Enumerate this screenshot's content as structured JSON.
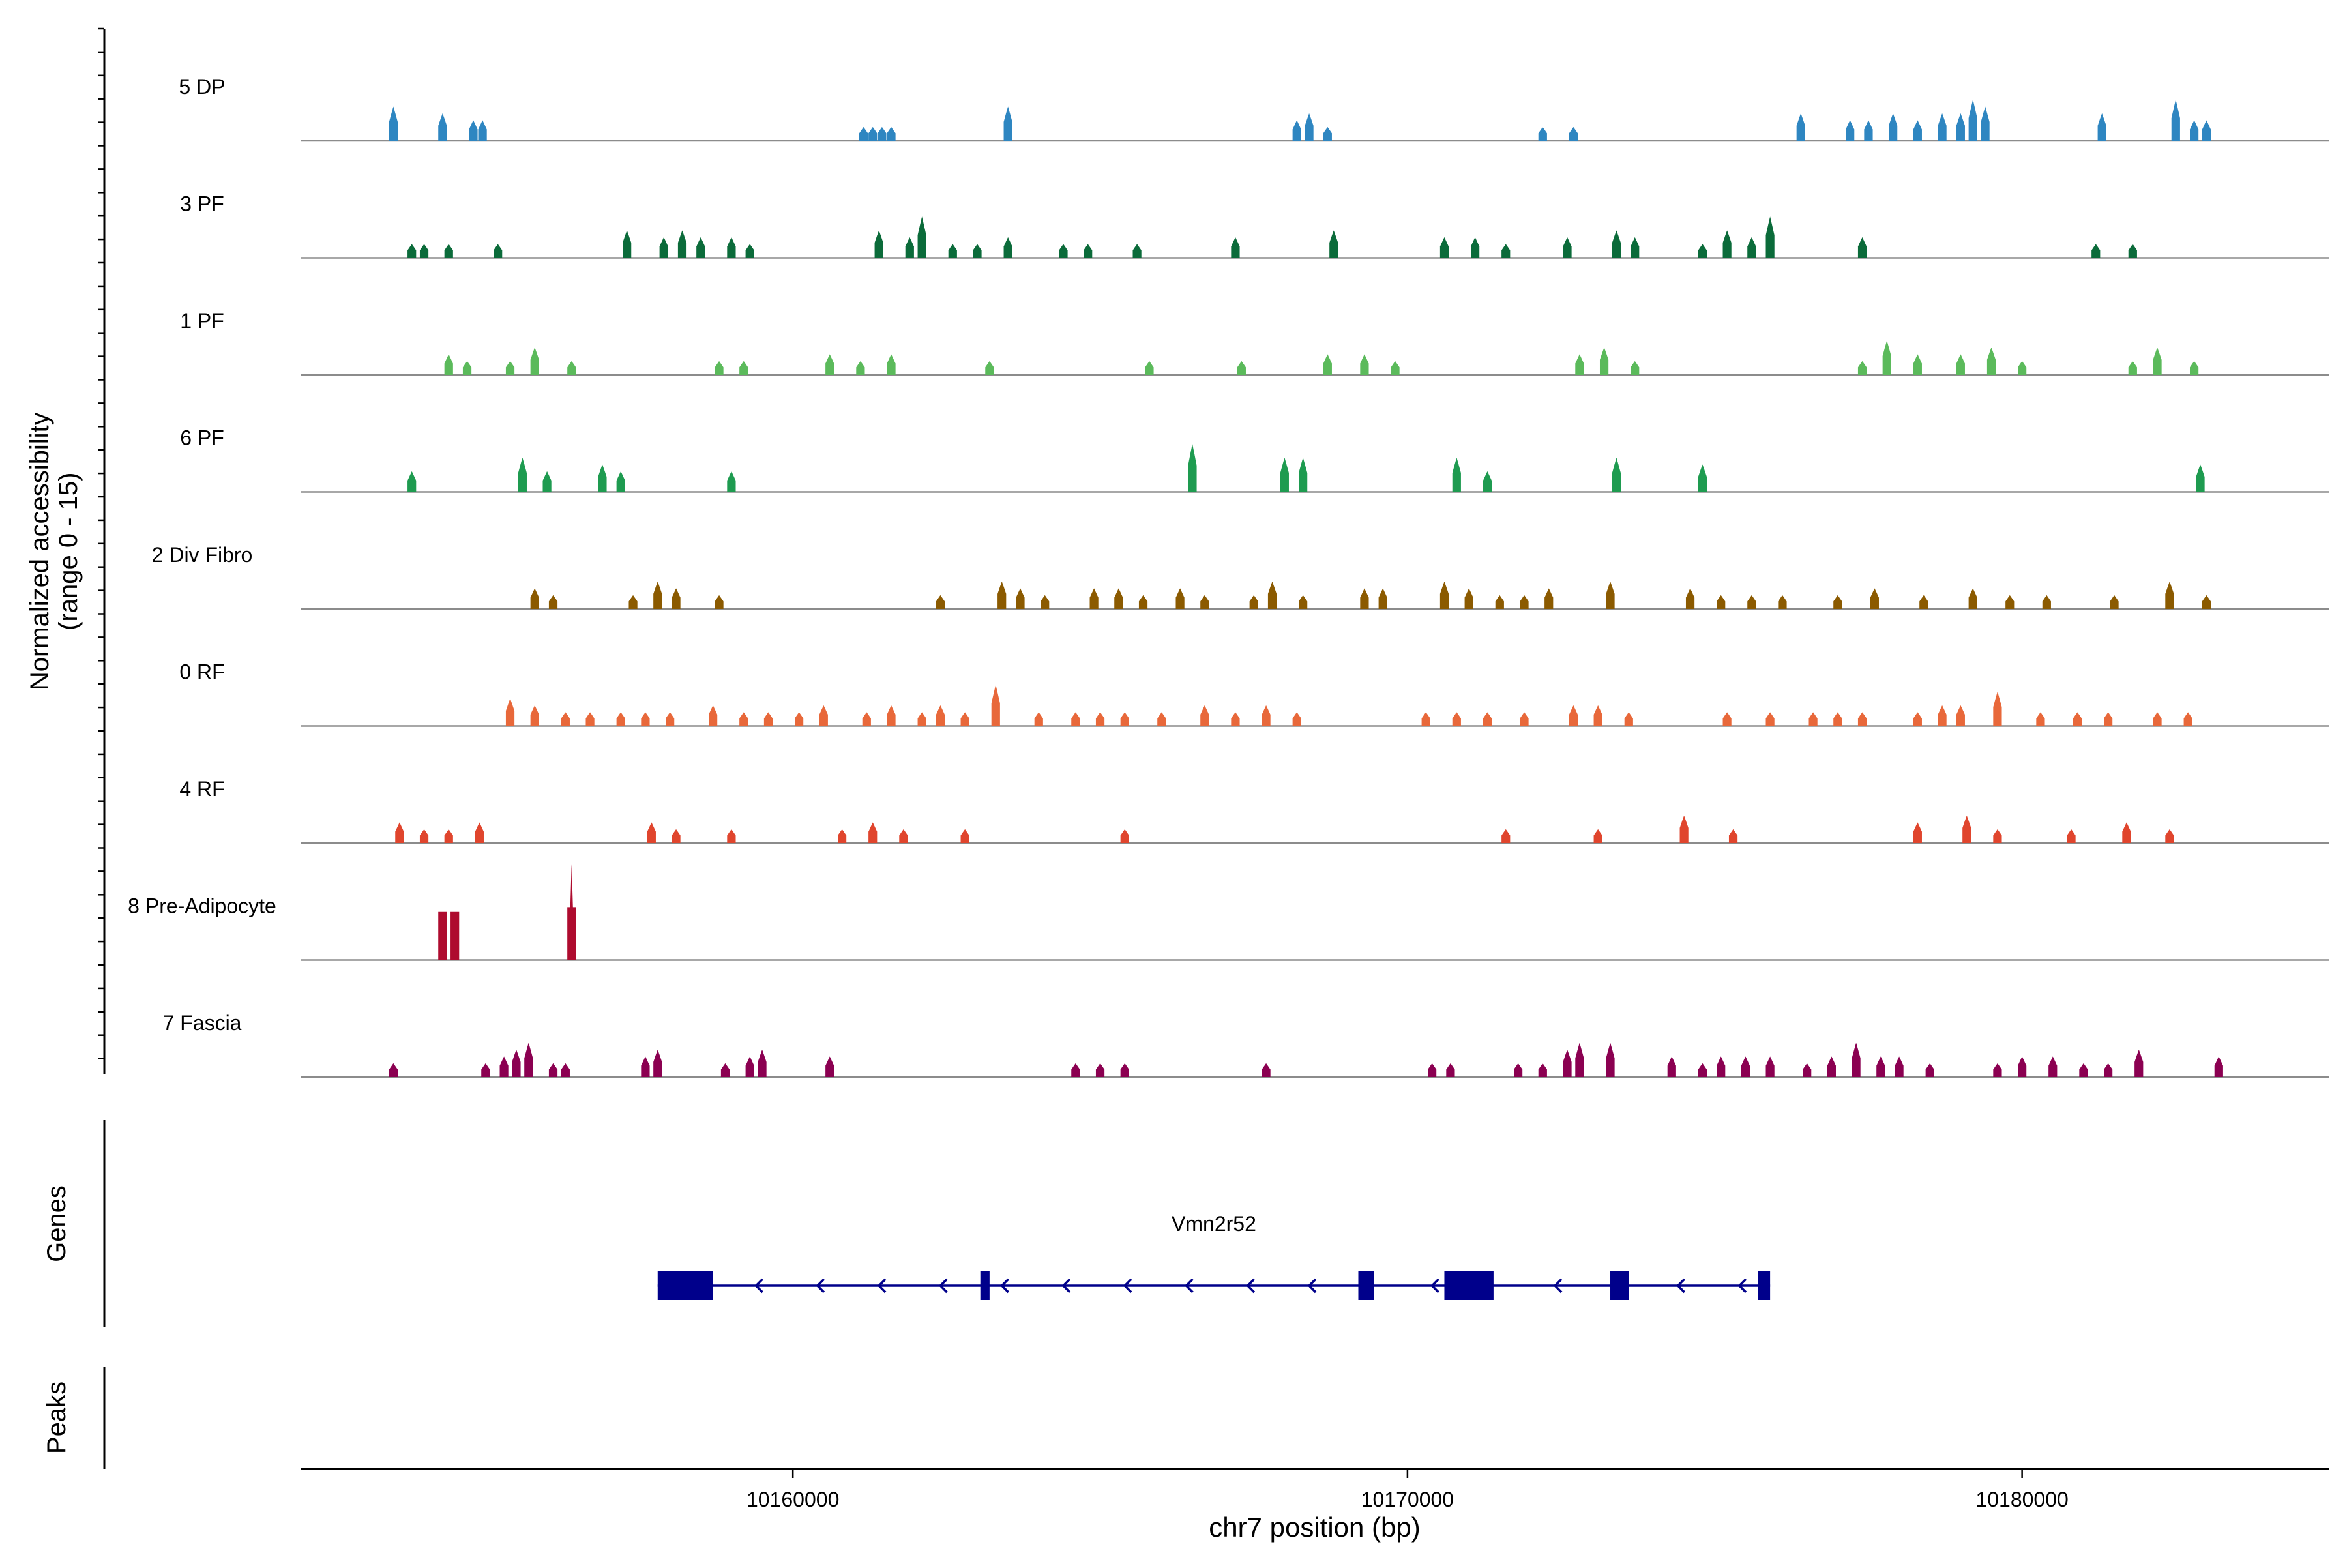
{
  "chart_data": {
    "type": "area",
    "title": "",
    "ylabel_line1": "Normalized accessibility",
    "ylabel_line2": "(range 0 - 15)",
    "y_range": [
      0,
      15
    ],
    "xlabel": "chr7 position (bp)",
    "x_range": [
      10152000,
      10185000
    ],
    "x_ticks": [
      {
        "value": 10160000,
        "label": "10160000"
      },
      {
        "value": 10170000,
        "label": "10170000"
      },
      {
        "value": 10180000,
        "label": "10180000"
      }
    ],
    "tracks": [
      {
        "name": "5 DP",
        "color": "#2E86C1",
        "peaks": [
          [
            10153500,
            5
          ],
          [
            10154300,
            4
          ],
          [
            10154800,
            3
          ],
          [
            10154950,
            3
          ],
          [
            10161150,
            2
          ],
          [
            10161300,
            2
          ],
          [
            10161450,
            2
          ],
          [
            10161600,
            2
          ],
          [
            10163500,
            5
          ],
          [
            10168200,
            3
          ],
          [
            10168400,
            4
          ],
          [
            10168700,
            2
          ],
          [
            10172200,
            2
          ],
          [
            10172700,
            2
          ],
          [
            10176400,
            4
          ],
          [
            10177200,
            3
          ],
          [
            10177500,
            3
          ],
          [
            10177900,
            4
          ],
          [
            10178300,
            3
          ],
          [
            10178700,
            4
          ],
          [
            10179000,
            4
          ],
          [
            10179200,
            6
          ],
          [
            10179400,
            5
          ],
          [
            10181300,
            4
          ],
          [
            10182500,
            6
          ],
          [
            10182800,
            3
          ],
          [
            10183000,
            3
          ]
        ]
      },
      {
        "name": "3 PF",
        "color": "#0B6B3A",
        "peaks": [
          [
            10153800,
            2
          ],
          [
            10154000,
            2
          ],
          [
            10154400,
            2
          ],
          [
            10155200,
            2
          ],
          [
            10157300,
            4
          ],
          [
            10157900,
            3
          ],
          [
            10158200,
            4
          ],
          [
            10158500,
            3
          ],
          [
            10159000,
            3
          ],
          [
            10159300,
            2
          ],
          [
            10161400,
            4
          ],
          [
            10161900,
            3
          ],
          [
            10162100,
            6
          ],
          [
            10162600,
            2
          ],
          [
            10163000,
            2
          ],
          [
            10163500,
            3
          ],
          [
            10164400,
            2
          ],
          [
            10164800,
            2
          ],
          [
            10165600,
            2
          ],
          [
            10167200,
            3
          ],
          [
            10168800,
            4
          ],
          [
            10170600,
            3
          ],
          [
            10171100,
            3
          ],
          [
            10171600,
            2
          ],
          [
            10172600,
            3
          ],
          [
            10173400,
            4
          ],
          [
            10173700,
            3
          ],
          [
            10174800,
            2
          ],
          [
            10175200,
            4
          ],
          [
            10175600,
            3
          ],
          [
            10175900,
            6
          ],
          [
            10177400,
            3
          ],
          [
            10181200,
            2
          ],
          [
            10181800,
            2
          ]
        ]
      },
      {
        "name": "1 PF",
        "color": "#5BBA5B",
        "peaks": [
          [
            10154400,
            3
          ],
          [
            10154700,
            2
          ],
          [
            10155400,
            2
          ],
          [
            10155800,
            4
          ],
          [
            10156400,
            2
          ],
          [
            10158800,
            2
          ],
          [
            10159200,
            2
          ],
          [
            10160600,
            3
          ],
          [
            10161100,
            2
          ],
          [
            10161600,
            3
          ],
          [
            10163200,
            2
          ],
          [
            10165800,
            2
          ],
          [
            10167300,
            2
          ],
          [
            10168700,
            3
          ],
          [
            10169300,
            3
          ],
          [
            10169800,
            2
          ],
          [
            10172800,
            3
          ],
          [
            10173200,
            4
          ],
          [
            10173700,
            2
          ],
          [
            10177400,
            2
          ],
          [
            10177800,
            5
          ],
          [
            10178300,
            3
          ],
          [
            10179000,
            3
          ],
          [
            10179500,
            4
          ],
          [
            10180000,
            2
          ],
          [
            10181800,
            2
          ],
          [
            10182200,
            4
          ],
          [
            10182800,
            2
          ]
        ]
      },
      {
        "name": "6 PF",
        "color": "#1E9B50",
        "peaks": [
          [
            10153800,
            3
          ],
          [
            10155600,
            5
          ],
          [
            10156000,
            3
          ],
          [
            10156900,
            4
          ],
          [
            10157200,
            3
          ],
          [
            10159000,
            3
          ],
          [
            10166500,
            7
          ],
          [
            10168000,
            5
          ],
          [
            10168300,
            5
          ],
          [
            10170800,
            5
          ],
          [
            10171300,
            3
          ],
          [
            10173400,
            5
          ],
          [
            10174800,
            4
          ],
          [
            10182900,
            4
          ]
        ]
      },
      {
        "name": "2 Div Fibro",
        "color": "#8B5A00",
        "peaks": [
          [
            10155800,
            3
          ],
          [
            10156100,
            2
          ],
          [
            10157400,
            2
          ],
          [
            10157800,
            4
          ],
          [
            10158100,
            3
          ],
          [
            10158800,
            2
          ],
          [
            10162400,
            2
          ],
          [
            10163400,
            4
          ],
          [
            10163700,
            3
          ],
          [
            10164100,
            2
          ],
          [
            10164900,
            3
          ],
          [
            10165300,
            3
          ],
          [
            10165700,
            2
          ],
          [
            10166300,
            3
          ],
          [
            10166700,
            2
          ],
          [
            10167500,
            2
          ],
          [
            10167800,
            4
          ],
          [
            10168300,
            2
          ],
          [
            10169300,
            3
          ],
          [
            10169600,
            3
          ],
          [
            10170600,
            4
          ],
          [
            10171000,
            3
          ],
          [
            10171500,
            2
          ],
          [
            10171900,
            2
          ],
          [
            10172300,
            3
          ],
          [
            10173300,
            4
          ],
          [
            10174600,
            3
          ],
          [
            10175100,
            2
          ],
          [
            10175600,
            2
          ],
          [
            10176100,
            2
          ],
          [
            10177000,
            2
          ],
          [
            10177600,
            3
          ],
          [
            10178400,
            2
          ],
          [
            10179200,
            3
          ],
          [
            10179800,
            2
          ],
          [
            10180400,
            2
          ],
          [
            10181500,
            2
          ],
          [
            10182400,
            4
          ],
          [
            10183000,
            2
          ]
        ]
      },
      {
        "name": "0 RF",
        "color": "#E8683A",
        "peaks": [
          [
            10155400,
            4
          ],
          [
            10155800,
            3
          ],
          [
            10156300,
            2
          ],
          [
            10156700,
            2
          ],
          [
            10157200,
            2
          ],
          [
            10157600,
            2
          ],
          [
            10158000,
            2
          ],
          [
            10158700,
            3
          ],
          [
            10159200,
            2
          ],
          [
            10159600,
            2
          ],
          [
            10160100,
            2
          ],
          [
            10160500,
            3
          ],
          [
            10161200,
            2
          ],
          [
            10161600,
            3
          ],
          [
            10162100,
            2
          ],
          [
            10162400,
            3
          ],
          [
            10162800,
            2
          ],
          [
            10163300,
            6
          ],
          [
            10164000,
            2
          ],
          [
            10164600,
            2
          ],
          [
            10165000,
            2
          ],
          [
            10165400,
            2
          ],
          [
            10166000,
            2
          ],
          [
            10166700,
            3
          ],
          [
            10167200,
            2
          ],
          [
            10167700,
            3
          ],
          [
            10168200,
            2
          ],
          [
            10170300,
            2
          ],
          [
            10170800,
            2
          ],
          [
            10171300,
            2
          ],
          [
            10171900,
            2
          ],
          [
            10172700,
            3
          ],
          [
            10173100,
            3
          ],
          [
            10173600,
            2
          ],
          [
            10175200,
            2
          ],
          [
            10175900,
            2
          ],
          [
            10176600,
            2
          ],
          [
            10177000,
            2
          ],
          [
            10177400,
            2
          ],
          [
            10178300,
            2
          ],
          [
            10178700,
            3
          ],
          [
            10179000,
            3
          ],
          [
            10179600,
            5
          ],
          [
            10180300,
            2
          ],
          [
            10180900,
            2
          ],
          [
            10181400,
            2
          ],
          [
            10182200,
            2
          ],
          [
            10182700,
            2
          ]
        ]
      },
      {
        "name": "4 RF",
        "color": "#E0452D",
        "peaks": [
          [
            10153600,
            3
          ],
          [
            10154000,
            2
          ],
          [
            10154400,
            2
          ],
          [
            10154900,
            3
          ],
          [
            10157700,
            3
          ],
          [
            10158100,
            2
          ],
          [
            10159000,
            2
          ],
          [
            10160800,
            2
          ],
          [
            10161300,
            3
          ],
          [
            10161800,
            2
          ],
          [
            10162800,
            2
          ],
          [
            10165400,
            2
          ],
          [
            10171600,
            2
          ],
          [
            10173100,
            2
          ],
          [
            10174500,
            4
          ],
          [
            10175300,
            2
          ],
          [
            10178300,
            3
          ],
          [
            10179100,
            4
          ],
          [
            10179600,
            2
          ],
          [
            10180800,
            2
          ],
          [
            10181700,
            3
          ],
          [
            10182400,
            2
          ]
        ]
      },
      {
        "name": "8 Pre-Adipocyte",
        "color": "#AE0B2E",
        "peaks": [
          [
            10154300,
            7
          ],
          [
            10154500,
            7
          ],
          [
            10156400,
            14
          ]
        ]
      },
      {
        "name": "7 Fascia",
        "color": "#8B0051",
        "peaks": [
          [
            10153500,
            2
          ],
          [
            10155000,
            2
          ],
          [
            10155300,
            3
          ],
          [
            10155500,
            4
          ],
          [
            10155700,
            5
          ],
          [
            10156100,
            2
          ],
          [
            10156300,
            2
          ],
          [
            10157600,
            3
          ],
          [
            10157800,
            4
          ],
          [
            10158900,
            2
          ],
          [
            10159300,
            3
          ],
          [
            10159500,
            4
          ],
          [
            10160600,
            3
          ],
          [
            10164600,
            2
          ],
          [
            10165000,
            2
          ],
          [
            10165400,
            2
          ],
          [
            10167700,
            2
          ],
          [
            10170400,
            2
          ],
          [
            10170700,
            2
          ],
          [
            10171800,
            2
          ],
          [
            10172200,
            2
          ],
          [
            10172600,
            4
          ],
          [
            10172800,
            5
          ],
          [
            10173300,
            5
          ],
          [
            10174300,
            3
          ],
          [
            10174800,
            2
          ],
          [
            10175100,
            3
          ],
          [
            10175500,
            3
          ],
          [
            10175900,
            3
          ],
          [
            10176500,
            2
          ],
          [
            10176900,
            3
          ],
          [
            10177300,
            5
          ],
          [
            10177700,
            3
          ],
          [
            10178000,
            3
          ],
          [
            10178500,
            2
          ],
          [
            10179600,
            2
          ],
          [
            10180000,
            3
          ],
          [
            10180500,
            3
          ],
          [
            10181000,
            2
          ],
          [
            10181400,
            2
          ],
          [
            10181900,
            4
          ],
          [
            10183200,
            3
          ]
        ]
      }
    ],
    "genes": [
      {
        "name": "Vmn2r52",
        "strand": "-",
        "start": 10157800,
        "end": 10175900,
        "exons": [
          [
            10157800,
            10158700
          ],
          [
            10163050,
            10163200
          ],
          [
            10169200,
            10169450
          ],
          [
            10170600,
            10171400
          ],
          [
            10173300,
            10173600
          ],
          [
            10175700,
            10175900
          ]
        ]
      }
    ],
    "gene_track_label": "Genes",
    "peaks_track_label": "Peaks",
    "peaks": []
  }
}
